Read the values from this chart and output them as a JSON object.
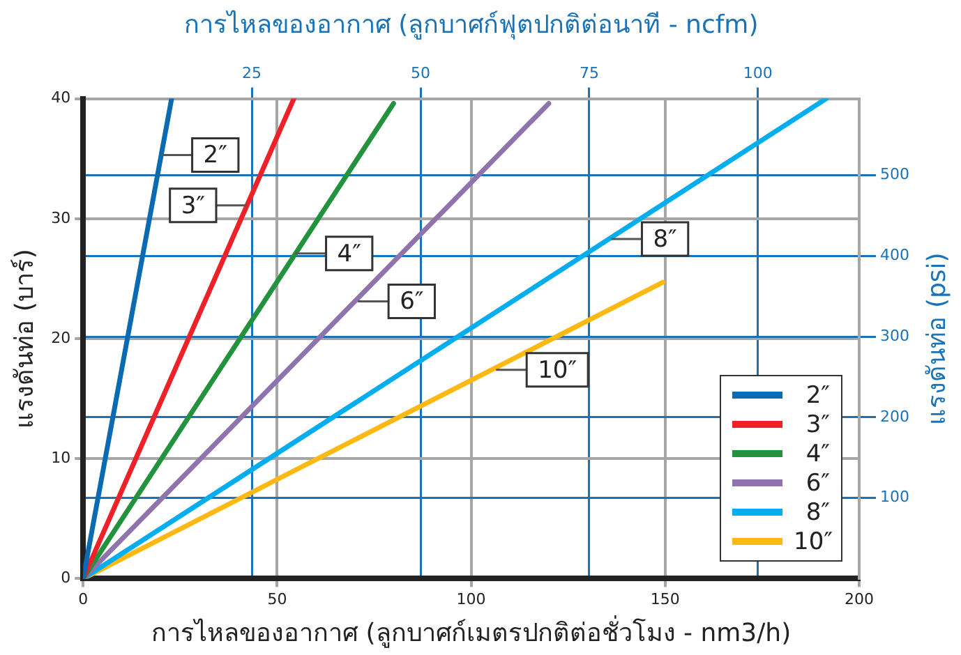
{
  "chart_data": {
    "type": "line",
    "x2label": "การไหลของอากาศ (ลูกบาศก์ฟุตปกติต่อนาที - ncfm)",
    "xlabel": "การไหลของอากาศ (ลูกบาศก์เมตรปกติต่อชั่วโมง - nm3/h)",
    "ylabel": "แรงดันท่อ (บาร์)",
    "y2label": "แรงดันท่อ (psi)",
    "xlim": [
      0,
      200
    ],
    "xticks": [
      0,
      50,
      100,
      150,
      200
    ],
    "ylim": [
      0,
      40
    ],
    "yticks": [
      0,
      10,
      20,
      30,
      40
    ],
    "x2lim": [
      0,
      115
    ],
    "x2ticks": [
      25,
      50,
      75,
      100
    ],
    "y2lim": [
      0,
      595
    ],
    "y2ticks": [
      100,
      200,
      300,
      400,
      500
    ],
    "grid": true,
    "legend": "bottom right",
    "marker": "none",
    "line_style": "solid",
    "series": [
      {
        "name": "2″",
        "color": "#0a6ab2",
        "x": [
          0,
          22.8
        ],
        "values": [
          0,
          40
        ]
      },
      {
        "name": "3″",
        "color": "#ee2129",
        "x": [
          0,
          54.3
        ],
        "values": [
          0,
          40
        ]
      },
      {
        "name": "4″",
        "color": "#23923d",
        "x": [
          0,
          80
        ],
        "values": [
          0,
          39.6
        ]
      },
      {
        "name": "6″",
        "color": "#8f73ad",
        "x": [
          0,
          120
        ],
        "values": [
          0,
          39.6
        ]
      },
      {
        "name": "8″",
        "color": "#00aeef",
        "x": [
          0,
          191.5
        ],
        "values": [
          0,
          40
        ]
      },
      {
        "name": "10″",
        "color": "#fdb913",
        "x": [
          0,
          149.4
        ],
        "values": [
          0,
          24.7
        ]
      }
    ],
    "annotations": [
      {
        "text": "2″",
        "x": 20.2,
        "y": 35.3
      },
      {
        "text": "3″",
        "x": 42.2,
        "y": 31.1
      },
      {
        "text": "4″",
        "x": 54.7,
        "y": 27.1
      },
      {
        "text": "6″",
        "x": 70.8,
        "y": 23.1
      },
      {
        "text": "8″",
        "x": 136.1,
        "y": 28.3
      },
      {
        "text": "10″",
        "x": 106.4,
        "y": 17.4
      }
    ]
  }
}
